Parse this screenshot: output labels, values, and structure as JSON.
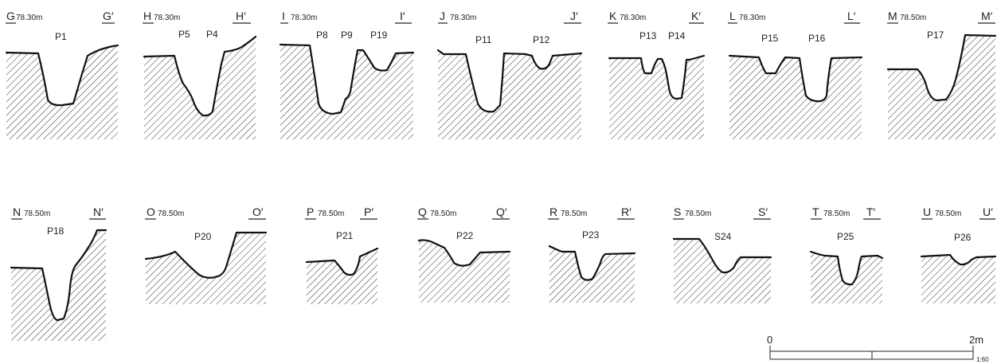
{
  "sections": [
    {
      "start": "G",
      "end": "G′",
      "elevation": "78.30m",
      "pits": [
        "P1"
      ]
    },
    {
      "start": "H",
      "end": "H′",
      "elevation": "78.30m",
      "pits": [
        "P5",
        "P4"
      ]
    },
    {
      "start": "I",
      "end": "I′",
      "elevation": "78.30m",
      "pits": [
        "P8",
        "P9",
        "P19"
      ]
    },
    {
      "start": "J",
      "end": "J′",
      "elevation": "78.30m",
      "pits": [
        "P11",
        "P12"
      ]
    },
    {
      "start": "K",
      "end": "K′",
      "elevation": "78.30m",
      "pits": [
        "P13",
        "P14"
      ]
    },
    {
      "start": "L",
      "end": "L′",
      "elevation": "78.30m",
      "pits": [
        "P15",
        "P16"
      ]
    },
    {
      "start": "M",
      "end": "M′",
      "elevation": "78.50m",
      "pits": [
        "P17"
      ]
    },
    {
      "start": "N",
      "end": "N′",
      "elevation": "78.50m",
      "pits": [
        "P18"
      ]
    },
    {
      "start": "O",
      "end": "O′",
      "elevation": "78.50m",
      "pits": [
        "P20"
      ]
    },
    {
      "start": "P",
      "end": "P′",
      "elevation": "78.50m",
      "pits": [
        "P21"
      ]
    },
    {
      "start": "Q",
      "end": "Q′",
      "elevation": "78.50m",
      "pits": [
        "P22"
      ]
    },
    {
      "start": "R",
      "end": "R′",
      "elevation": "78.50m",
      "pits": [
        "P23"
      ]
    },
    {
      "start": "S",
      "end": "S′",
      "elevation": "78.50m",
      "pits": [
        "S24"
      ]
    },
    {
      "start": "T",
      "end": "T′",
      "elevation": "78.50m",
      "pits": [
        "P25"
      ]
    },
    {
      "start": "U",
      "end": "U′",
      "elevation": "78.50m",
      "pits": [
        "P26"
      ]
    }
  ],
  "scale_bar": {
    "zero": "0",
    "max": "2m",
    "ratio": "1:60"
  }
}
